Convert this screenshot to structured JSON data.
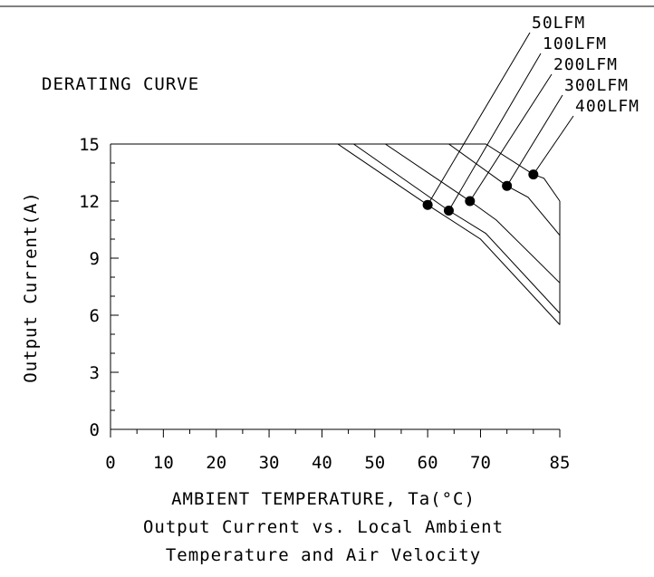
{
  "chart_data": {
    "type": "line",
    "title": "DERATING CURVE",
    "xlabel": "AMBIENT TEMPERATURE, Ta(°C)",
    "ylabel": "Output Current(A)",
    "caption": [
      "Output Current vs. Local Ambient",
      "Temperature and Air Velocity"
    ],
    "xlim": [
      0,
      85
    ],
    "ylim": [
      0,
      15
    ],
    "x_ticks": [
      0,
      10,
      20,
      30,
      40,
      50,
      60,
      70,
      85
    ],
    "x_tick_labels": [
      "0",
      "10",
      "20",
      "30",
      "40",
      "50",
      "60",
      "70",
      "85"
    ],
    "y_ticks": [
      0,
      3,
      6,
      9,
      12,
      15
    ],
    "y_tick_labels": [
      "0",
      "3",
      "6",
      "9",
      "12",
      "15"
    ],
    "grid": false,
    "legend": "top-right",
    "series": [
      {
        "name": "50LFM",
        "points": [
          [
            0,
            15
          ],
          [
            43,
            15
          ],
          [
            60,
            11.8
          ],
          [
            70,
            10
          ],
          [
            85,
            5.5
          ]
        ],
        "marker": [
          60,
          11.8
        ]
      },
      {
        "name": "100LFM",
        "points": [
          [
            0,
            15
          ],
          [
            46,
            15
          ],
          [
            64,
            11.5
          ],
          [
            71,
            10.3
          ],
          [
            85,
            6.1
          ]
        ],
        "marker": [
          64,
          11.5
        ]
      },
      {
        "name": "200LFM",
        "points": [
          [
            0,
            15
          ],
          [
            52,
            15
          ],
          [
            68,
            12
          ],
          [
            73,
            11
          ],
          [
            85,
            7.7
          ]
        ],
        "marker": [
          68,
          12
        ]
      },
      {
        "name": "300LFM",
        "points": [
          [
            0,
            15
          ],
          [
            64,
            15
          ],
          [
            75,
            12.8
          ],
          [
            79,
            12.2
          ],
          [
            85,
            10.2
          ]
        ],
        "marker": [
          75,
          12.8
        ]
      },
      {
        "name": "400LFM",
        "points": [
          [
            0,
            15
          ],
          [
            71,
            15
          ],
          [
            80,
            13.4
          ],
          [
            82,
            13.2
          ],
          [
            85,
            12
          ]
        ],
        "marker": [
          80,
          13.4
        ]
      }
    ]
  }
}
